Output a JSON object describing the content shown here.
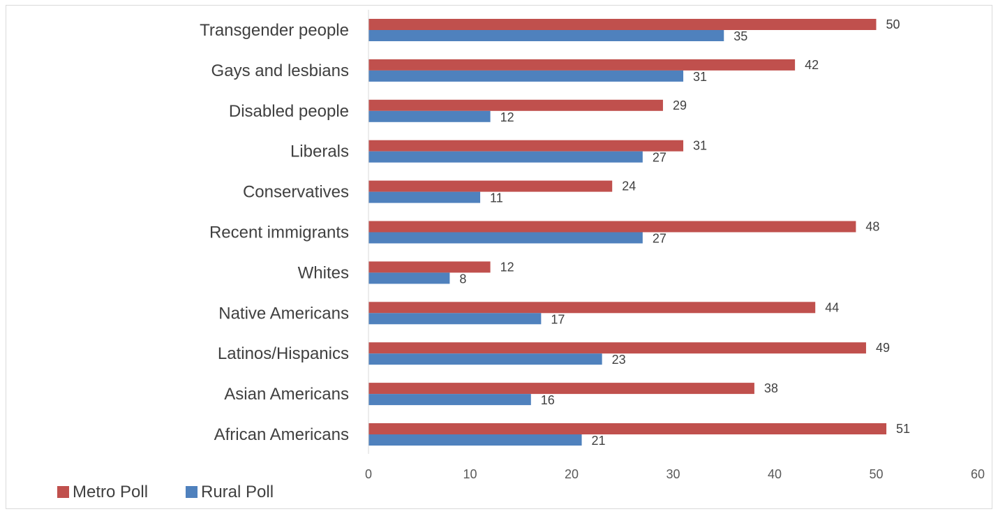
{
  "chart_data": {
    "type": "bar",
    "orientation": "horizontal",
    "categories": [
      "Transgender people",
      "Gays and lesbians",
      "Disabled people",
      "Liberals",
      "Conservatives",
      "Recent immigrants",
      "Whites",
      "Native Americans",
      "Latinos/Hispanics",
      "Asian Americans",
      "African Americans"
    ],
    "series": [
      {
        "name": "Metro Poll",
        "color": "#c0504d",
        "values": [
          50,
          42,
          29,
          31,
          24,
          48,
          12,
          44,
          49,
          38,
          51
        ]
      },
      {
        "name": "Rural Poll",
        "color": "#4f81bd",
        "values": [
          35,
          31,
          12,
          27,
          11,
          27,
          8,
          17,
          23,
          16,
          21
        ]
      }
    ],
    "xlim": [
      0,
      60
    ],
    "xticks": [
      0,
      10,
      20,
      30,
      40,
      50,
      60
    ],
    "grid": false,
    "legend_position": "bottom-left",
    "data_labels": true
  }
}
